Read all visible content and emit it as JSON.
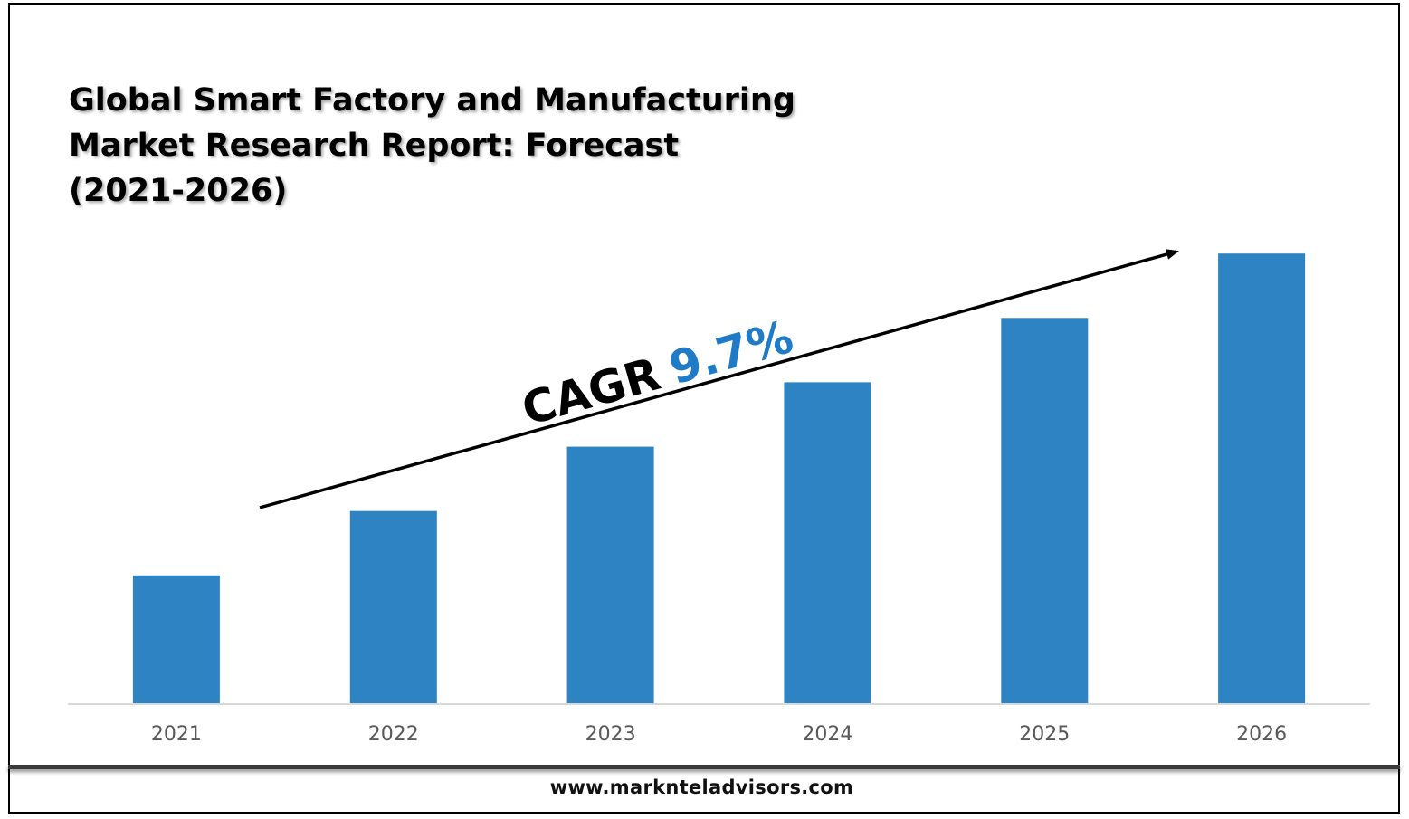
{
  "chart_data": {
    "type": "bar",
    "title": "Global Smart Factory and Manufacturing Market Research Report: Forecast (2021-2026)",
    "title_lines": [
      "Global Smart Factory and Manufacturing",
      "Market Research Report: Forecast",
      "(2021-2026)"
    ],
    "categories": [
      "2021",
      "2022",
      "2023",
      "2024",
      "2025",
      "2026"
    ],
    "values": [
      1.0,
      1.5,
      2.0,
      2.5,
      3.0,
      3.5
    ],
    "ylim": [
      0,
      3.6
    ],
    "bar_color": "#2E83C3",
    "annotation": {
      "prefix": "CAGR",
      "value": "9.7%",
      "value_color": "#1F7AC7"
    }
  },
  "footer": {
    "website": "www.marknteladvisors.com"
  }
}
